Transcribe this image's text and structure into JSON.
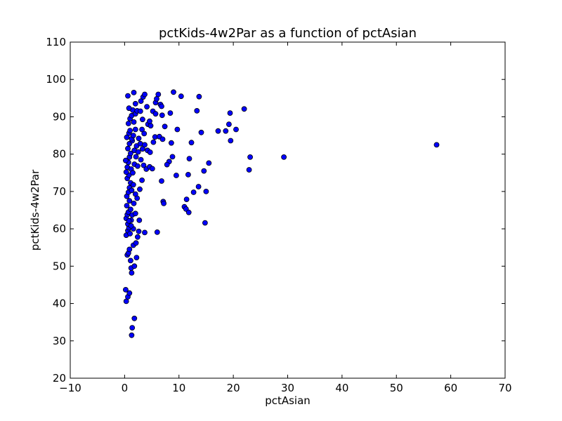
{
  "chart_data": {
    "type": "scatter",
    "title": "pctKids-4w2Par as a function of pctAsian",
    "xlabel": "pctAsian",
    "ylabel": "pctKids-4w2Par",
    "xlim": [
      -10,
      70
    ],
    "ylim": [
      20,
      110
    ],
    "xticks": [
      -10,
      0,
      10,
      20,
      30,
      40,
      50,
      60,
      70
    ],
    "yticks": [
      20,
      30,
      40,
      50,
      60,
      70,
      80,
      90,
      100,
      110
    ],
    "xtick_labels": [
      "−10",
      "0",
      "10",
      "20",
      "30",
      "40",
      "50",
      "60",
      "70"
    ],
    "ytick_labels": [
      "20",
      "30",
      "40",
      "50",
      "60",
      "70",
      "80",
      "90",
      "100",
      "110"
    ],
    "grid": false,
    "marker_color": "#0000ff",
    "marker_edge_color": "#000000",
    "series": [
      {
        "name": "pctKids-4w2Par",
        "points": [
          [
            0.2,
            43.7
          ],
          [
            0.3,
            40.6
          ],
          [
            0.6,
            41.8
          ],
          [
            0.9,
            42.8
          ],
          [
            1.3,
            31.5
          ],
          [
            1.4,
            33.5
          ],
          [
            1.8,
            36.0
          ],
          [
            0.5,
            53.0
          ],
          [
            0.7,
            53.5
          ],
          [
            0.9,
            54.5
          ],
          [
            1.1,
            51.5
          ],
          [
            1.2,
            49.5
          ],
          [
            1.3,
            48.2
          ],
          [
            1.8,
            50.0
          ],
          [
            2.2,
            52.3
          ],
          [
            1.6,
            55.6
          ],
          [
            0.3,
            58.3
          ],
          [
            0.6,
            59.5
          ],
          [
            0.8,
            60.3
          ],
          [
            1.0,
            58.7
          ],
          [
            1.6,
            60.0
          ],
          [
            1.2,
            62.3
          ],
          [
            2.4,
            57.8
          ],
          [
            2.6,
            59.3
          ],
          [
            2.1,
            56.2
          ],
          [
            2.7,
            62.3
          ],
          [
            3.7,
            59.0
          ],
          [
            6.0,
            59.1
          ],
          [
            0.3,
            62.8
          ],
          [
            0.5,
            63.8
          ],
          [
            0.7,
            64.5
          ],
          [
            0.4,
            66.2
          ],
          [
            0.9,
            67.5
          ],
          [
            1.1,
            65.2
          ],
          [
            1.4,
            63.7
          ],
          [
            1.7,
            66.8
          ],
          [
            2.0,
            64.1
          ],
          [
            0.6,
            61.3
          ],
          [
            0.8,
            62.1
          ],
          [
            1.2,
            60.8
          ],
          [
            0.4,
            68.7
          ],
          [
            0.7,
            69.8
          ],
          [
            0.9,
            71.0
          ],
          [
            1.1,
            72.3
          ],
          [
            0.5,
            73.5
          ],
          [
            0.8,
            74.4
          ],
          [
            1.3,
            70.3
          ],
          [
            1.6,
            71.8
          ],
          [
            2.0,
            69.3
          ],
          [
            2.3,
            68.2
          ],
          [
            2.8,
            70.6
          ],
          [
            3.2,
            73.0
          ],
          [
            0.3,
            75.2
          ],
          [
            0.5,
            76.5
          ],
          [
            0.7,
            77.8
          ],
          [
            0.2,
            78.3
          ],
          [
            0.9,
            79.2
          ],
          [
            1.2,
            76.0
          ],
          [
            1.5,
            75.0
          ],
          [
            1.8,
            77.3
          ],
          [
            2.1,
            79.3
          ],
          [
            2.4,
            76.8
          ],
          [
            3.0,
            78.5
          ],
          [
            3.5,
            77.0
          ],
          [
            4.0,
            76.0
          ],
          [
            4.6,
            76.6
          ],
          [
            5.1,
            76.1
          ],
          [
            0.6,
            81.5
          ],
          [
            0.9,
            82.8
          ],
          [
            1.1,
            80.2
          ],
          [
            1.4,
            83.6
          ],
          [
            1.8,
            81.0
          ],
          [
            2.2,
            82.2
          ],
          [
            2.5,
            80.6
          ],
          [
            2.9,
            82.8
          ],
          [
            3.3,
            81.4
          ],
          [
            3.7,
            82.5
          ],
          [
            4.2,
            81.0
          ],
          [
            4.7,
            80.5
          ],
          [
            5.3,
            83.2
          ],
          [
            0.4,
            84.5
          ],
          [
            0.8,
            85.6
          ],
          [
            1.0,
            86.3
          ],
          [
            1.3,
            84.1
          ],
          [
            1.6,
            85.0
          ],
          [
            2.0,
            86.6
          ],
          [
            2.6,
            84.2
          ],
          [
            3.2,
            86.6
          ],
          [
            3.6,
            85.5
          ],
          [
            4.3,
            88.0
          ],
          [
            4.8,
            87.6
          ],
          [
            5.6,
            84.6
          ],
          [
            6.4,
            84.7
          ],
          [
            7.0,
            84.0
          ],
          [
            0.7,
            88.2
          ],
          [
            1.0,
            89.5
          ],
          [
            1.3,
            90.3
          ],
          [
            1.5,
            91.8
          ],
          [
            1.7,
            88.6
          ],
          [
            2.0,
            90.8
          ],
          [
            2.3,
            91.6
          ],
          [
            2.9,
            91.5
          ],
          [
            3.3,
            89.3
          ],
          [
            4.6,
            88.8
          ],
          [
            5.2,
            91.5
          ],
          [
            5.7,
            90.8
          ],
          [
            6.9,
            90.4
          ],
          [
            0.8,
            92.3
          ],
          [
            0.6,
            95.6
          ],
          [
            1.7,
            96.5
          ],
          [
            2.0,
            93.5
          ],
          [
            3.0,
            94.2
          ],
          [
            3.4,
            95.3
          ],
          [
            3.7,
            96.0
          ],
          [
            4.1,
            92.7
          ],
          [
            5.7,
            93.8
          ],
          [
            5.9,
            94.8
          ],
          [
            6.2,
            96.0
          ],
          [
            6.6,
            93.3
          ],
          [
            6.8,
            92.8
          ],
          [
            9.0,
            96.6
          ],
          [
            7.4,
            87.4
          ],
          [
            8.2,
            78.0
          ],
          [
            8.6,
            83.0
          ],
          [
            8.8,
            79.3
          ],
          [
            9.5,
            74.3
          ],
          [
            9.7,
            86.6
          ],
          [
            10.4,
            95.5
          ],
          [
            8.4,
            91.0
          ],
          [
            7.8,
            77.2
          ],
          [
            6.8,
            72.8
          ],
          [
            7.1,
            67.3
          ],
          [
            7.2,
            66.8
          ],
          [
            11.0,
            65.9
          ],
          [
            11.3,
            65.3
          ],
          [
            11.4,
            67.9
          ],
          [
            11.8,
            64.4
          ],
          [
            11.7,
            74.5
          ],
          [
            11.9,
            78.8
          ],
          [
            12.3,
            83.1
          ],
          [
            12.7,
            69.8
          ],
          [
            13.3,
            91.6
          ],
          [
            13.6,
            71.3
          ],
          [
            13.7,
            95.4
          ],
          [
            14.1,
            85.8
          ],
          [
            14.6,
            75.5
          ],
          [
            14.8,
            61.6
          ],
          [
            15.0,
            70.0
          ],
          [
            15.5,
            77.6
          ],
          [
            17.2,
            86.2
          ],
          [
            18.6,
            86.2
          ],
          [
            19.2,
            88.0
          ],
          [
            19.4,
            91.0
          ],
          [
            19.5,
            83.6
          ],
          [
            20.5,
            86.6
          ],
          [
            22.0,
            92.1
          ],
          [
            22.9,
            75.8
          ],
          [
            23.1,
            79.2
          ],
          [
            29.3,
            79.2
          ],
          [
            57.4,
            82.5
          ]
        ]
      }
    ]
  }
}
